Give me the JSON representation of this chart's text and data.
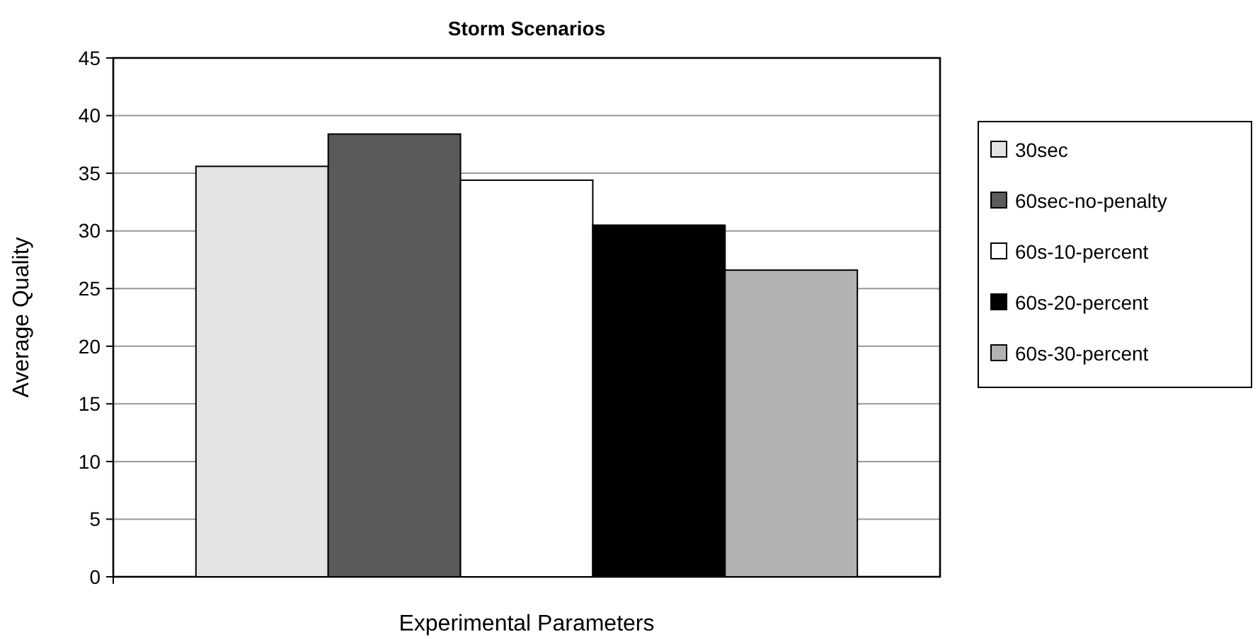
{
  "chart_data": {
    "type": "bar",
    "title": "Storm Scenarios",
    "xlabel": "Experimental Parameters",
    "ylabel": "Average Quality",
    "categories": [
      null
    ],
    "series": [
      {
        "name": "30sec",
        "color": "#e3e3e3",
        "values": [
          35.6
        ]
      },
      {
        "name": "60sec-no-penalty",
        "color": "#5a5a5a",
        "values": [
          38.4
        ]
      },
      {
        "name": "60s-10-percent",
        "color": "#ffffff",
        "values": [
          34.4
        ]
      },
      {
        "name": "60s-20-percent",
        "color": "#000000",
        "values": [
          30.5
        ]
      },
      {
        "name": "60s-30-percent",
        "color": "#b2b2b2",
        "values": [
          26.6
        ]
      }
    ],
    "ylim": [
      0,
      45
    ],
    "yticks": [
      0,
      5,
      10,
      15,
      20,
      25,
      30,
      35,
      40,
      45
    ],
    "grid": "y",
    "legend": "right"
  }
}
